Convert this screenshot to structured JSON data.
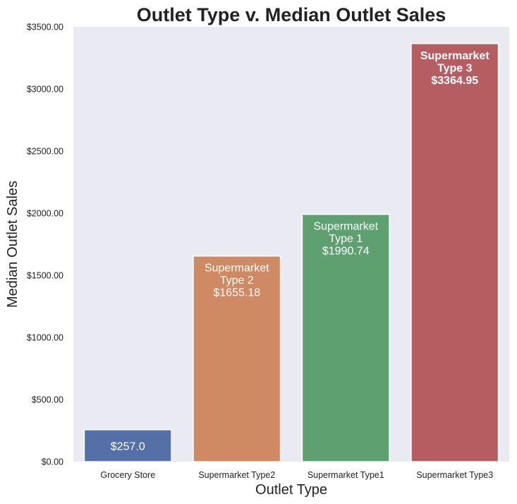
{
  "chart_data": {
    "type": "bar",
    "title": "Outlet Type v. Median Outlet Sales",
    "xlabel": "Outlet Type",
    "ylabel": "Median Outlet Sales",
    "ylim": [
      0,
      3500
    ],
    "y_ticks": [
      "$0.00",
      "$500.00",
      "$1000.00",
      "$1500.00",
      "$2000.00",
      "$2500.00",
      "$3000.00",
      "$3500.00"
    ],
    "y_tick_values": [
      0,
      500,
      1000,
      1500,
      2000,
      2500,
      3000,
      3500
    ],
    "categories": [
      "Grocery Store",
      "Supermarket Type2",
      "Supermarket Type1",
      "Supermarket Type3"
    ],
    "values": [
      257.0,
      1655.18,
      1990.74,
      3364.95
    ],
    "colors": [
      "#5470a6",
      "#cf8963",
      "#5fa070",
      "#b55d60"
    ],
    "background": "#eaeaf2",
    "grid": false,
    "legend": "none",
    "annotations": [
      {
        "lines": [
          "$257.0"
        ],
        "bold": false
      },
      {
        "lines": [
          "Supermarket",
          "Type 2",
          "$1655.18"
        ],
        "bold": false
      },
      {
        "lines": [
          "Supermarket",
          "Type 1",
          "$1990.74"
        ],
        "bold": false
      },
      {
        "lines": [
          "Supermarket",
          "Type 3",
          "$3364.95"
        ],
        "bold": true
      }
    ]
  }
}
